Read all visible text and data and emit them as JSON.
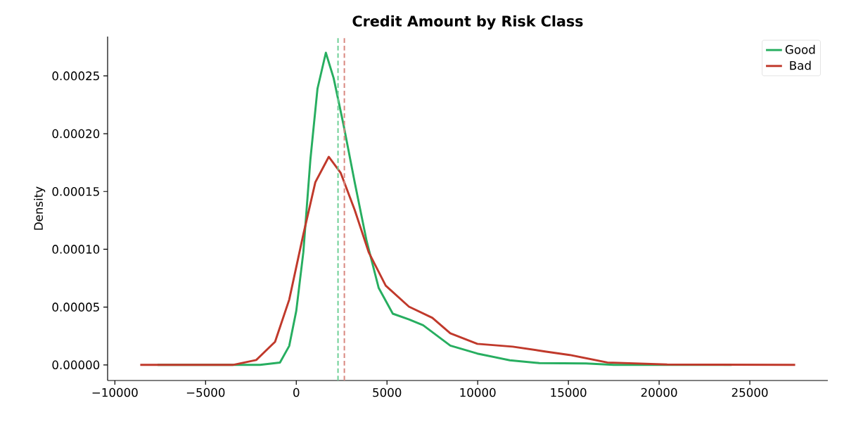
{
  "chart_data": {
    "type": "line",
    "title": "Credit Amount by Risk Class",
    "ylabel": "Density",
    "series": [
      {
        "name": "Good",
        "color": "#27ae60",
        "x": [
          -7650,
          -2000,
          -900,
          -390,
          0,
          390,
          780,
          1170,
          1630,
          2060,
          2600,
          3220,
          3880,
          4540,
          5320,
          6210,
          6990,
          8490,
          9980,
          11770,
          13400,
          15970,
          17500,
          24000
        ],
        "values": [
          0,
          0,
          2e-06,
          1.64e-05,
          4.68e-05,
          9.76e-05,
          0.000178,
          0.000239,
          0.00027,
          0.000248,
          0.000208,
          0.000158,
          0.000107,
          6.67e-05,
          4.43e-05,
          3.94e-05,
          3.43e-05,
          1.67e-05,
          9.8e-06,
          4e-06,
          1.6e-06,
          1.2e-06,
          0,
          0
        ]
      },
      {
        "name": "Bad",
        "color": "#c0392b",
        "x": [
          -8600,
          -3500,
          -2210,
          -1170,
          -390,
          390,
          1050,
          1790,
          2450,
          3220,
          4000,
          4930,
          6210,
          7500,
          8490,
          9980,
          11930,
          13710,
          15070,
          17150,
          20440,
          27500
        ],
        "values": [
          0,
          0,
          4.2e-06,
          2e-05,
          5.64e-05,
          0.000113,
          0.000158,
          0.00018,
          0.000166,
          0.000134,
          9.71e-05,
          6.86e-05,
          5.04e-05,
          4.07e-05,
          2.73e-05,
          1.82e-05,
          1.58e-05,
          1.16e-05,
          8.6e-06,
          2.1e-06,
          3e-07,
          0
        ]
      }
    ],
    "ref_lines": [
      {
        "axis": "x",
        "value": 2300,
        "color": "#6fcf97",
        "line_style": "dashed"
      },
      {
        "axis": "x",
        "value": 2650,
        "color": "#d98880",
        "line_style": "dashed"
      }
    ],
    "xlim": [
      -10400,
      29300
    ],
    "ylim": [
      -1.35e-05,
      0.000284
    ],
    "xticks": [
      {
        "value": -10000,
        "label": "−10000"
      },
      {
        "value": -5000,
        "label": "−5000"
      },
      0,
      5000,
      10000,
      15000,
      20000,
      25000
    ],
    "yticks": [
      {
        "value": 0,
        "label": "0.00000"
      },
      {
        "value": 5e-05,
        "label": "0.00005"
      },
      {
        "value": 0.0001,
        "label": "0.00010"
      },
      {
        "value": 0.00015,
        "label": "0.00015"
      },
      {
        "value": 0.0002,
        "label": "0.00020"
      },
      {
        "value": 0.00025,
        "label": "0.00025"
      }
    ],
    "legend": "top right",
    "grid": false,
    "marker": "none",
    "line_style": "solid"
  }
}
